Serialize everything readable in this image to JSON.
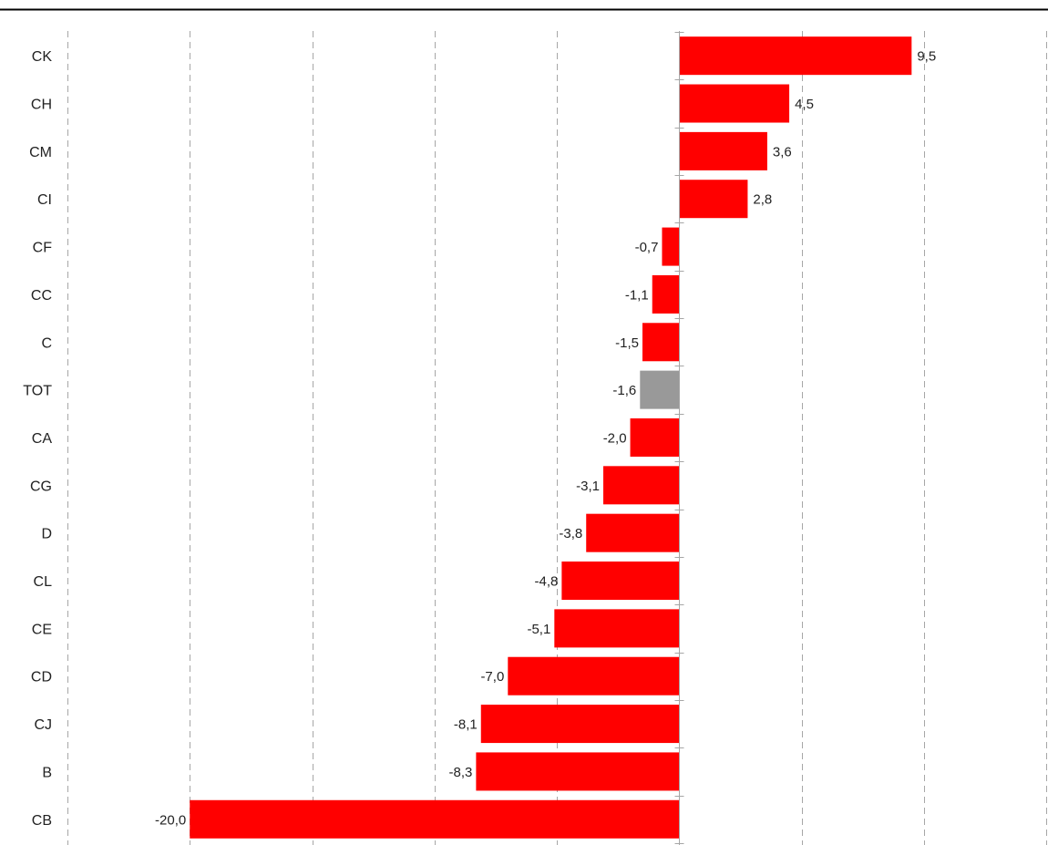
{
  "chart_data": {
    "type": "bar",
    "orientation": "horizontal",
    "title": "",
    "xlabel": "",
    "ylabel": "",
    "categories": [
      "CK",
      "CH",
      "CM",
      "CI",
      "CF",
      "CC",
      "C",
      "TOT",
      "CA",
      "CG",
      "D",
      "CL",
      "CE",
      "CD",
      "CJ",
      "B",
      "CB"
    ],
    "values": [
      9.5,
      4.5,
      3.6,
      2.8,
      -0.7,
      -1.1,
      -1.5,
      -1.6,
      -2.0,
      -3.1,
      -3.8,
      -4.8,
      -5.1,
      -7.0,
      -8.1,
      -8.3,
      -20.0
    ],
    "value_labels": [
      "9,5",
      "4,5",
      "3,6",
      "2,8",
      "-0,7",
      "-1,1",
      "-1,5",
      "-1,6",
      "-2,0",
      "-3,1",
      "-3,8",
      "-4,8",
      "-5,1",
      "-7,0",
      "-8,1",
      "-8,3",
      "-20,0"
    ],
    "highlight_category": "TOT",
    "xlim": [
      -25,
      15
    ],
    "grid_step": 5,
    "grid": true,
    "legend": "none",
    "colors": {
      "bar": "#ff0000",
      "highlight": "#999999",
      "grid": "#a6a6a6",
      "axis": "#a6a6a6",
      "top_rule": "#000000"
    }
  }
}
